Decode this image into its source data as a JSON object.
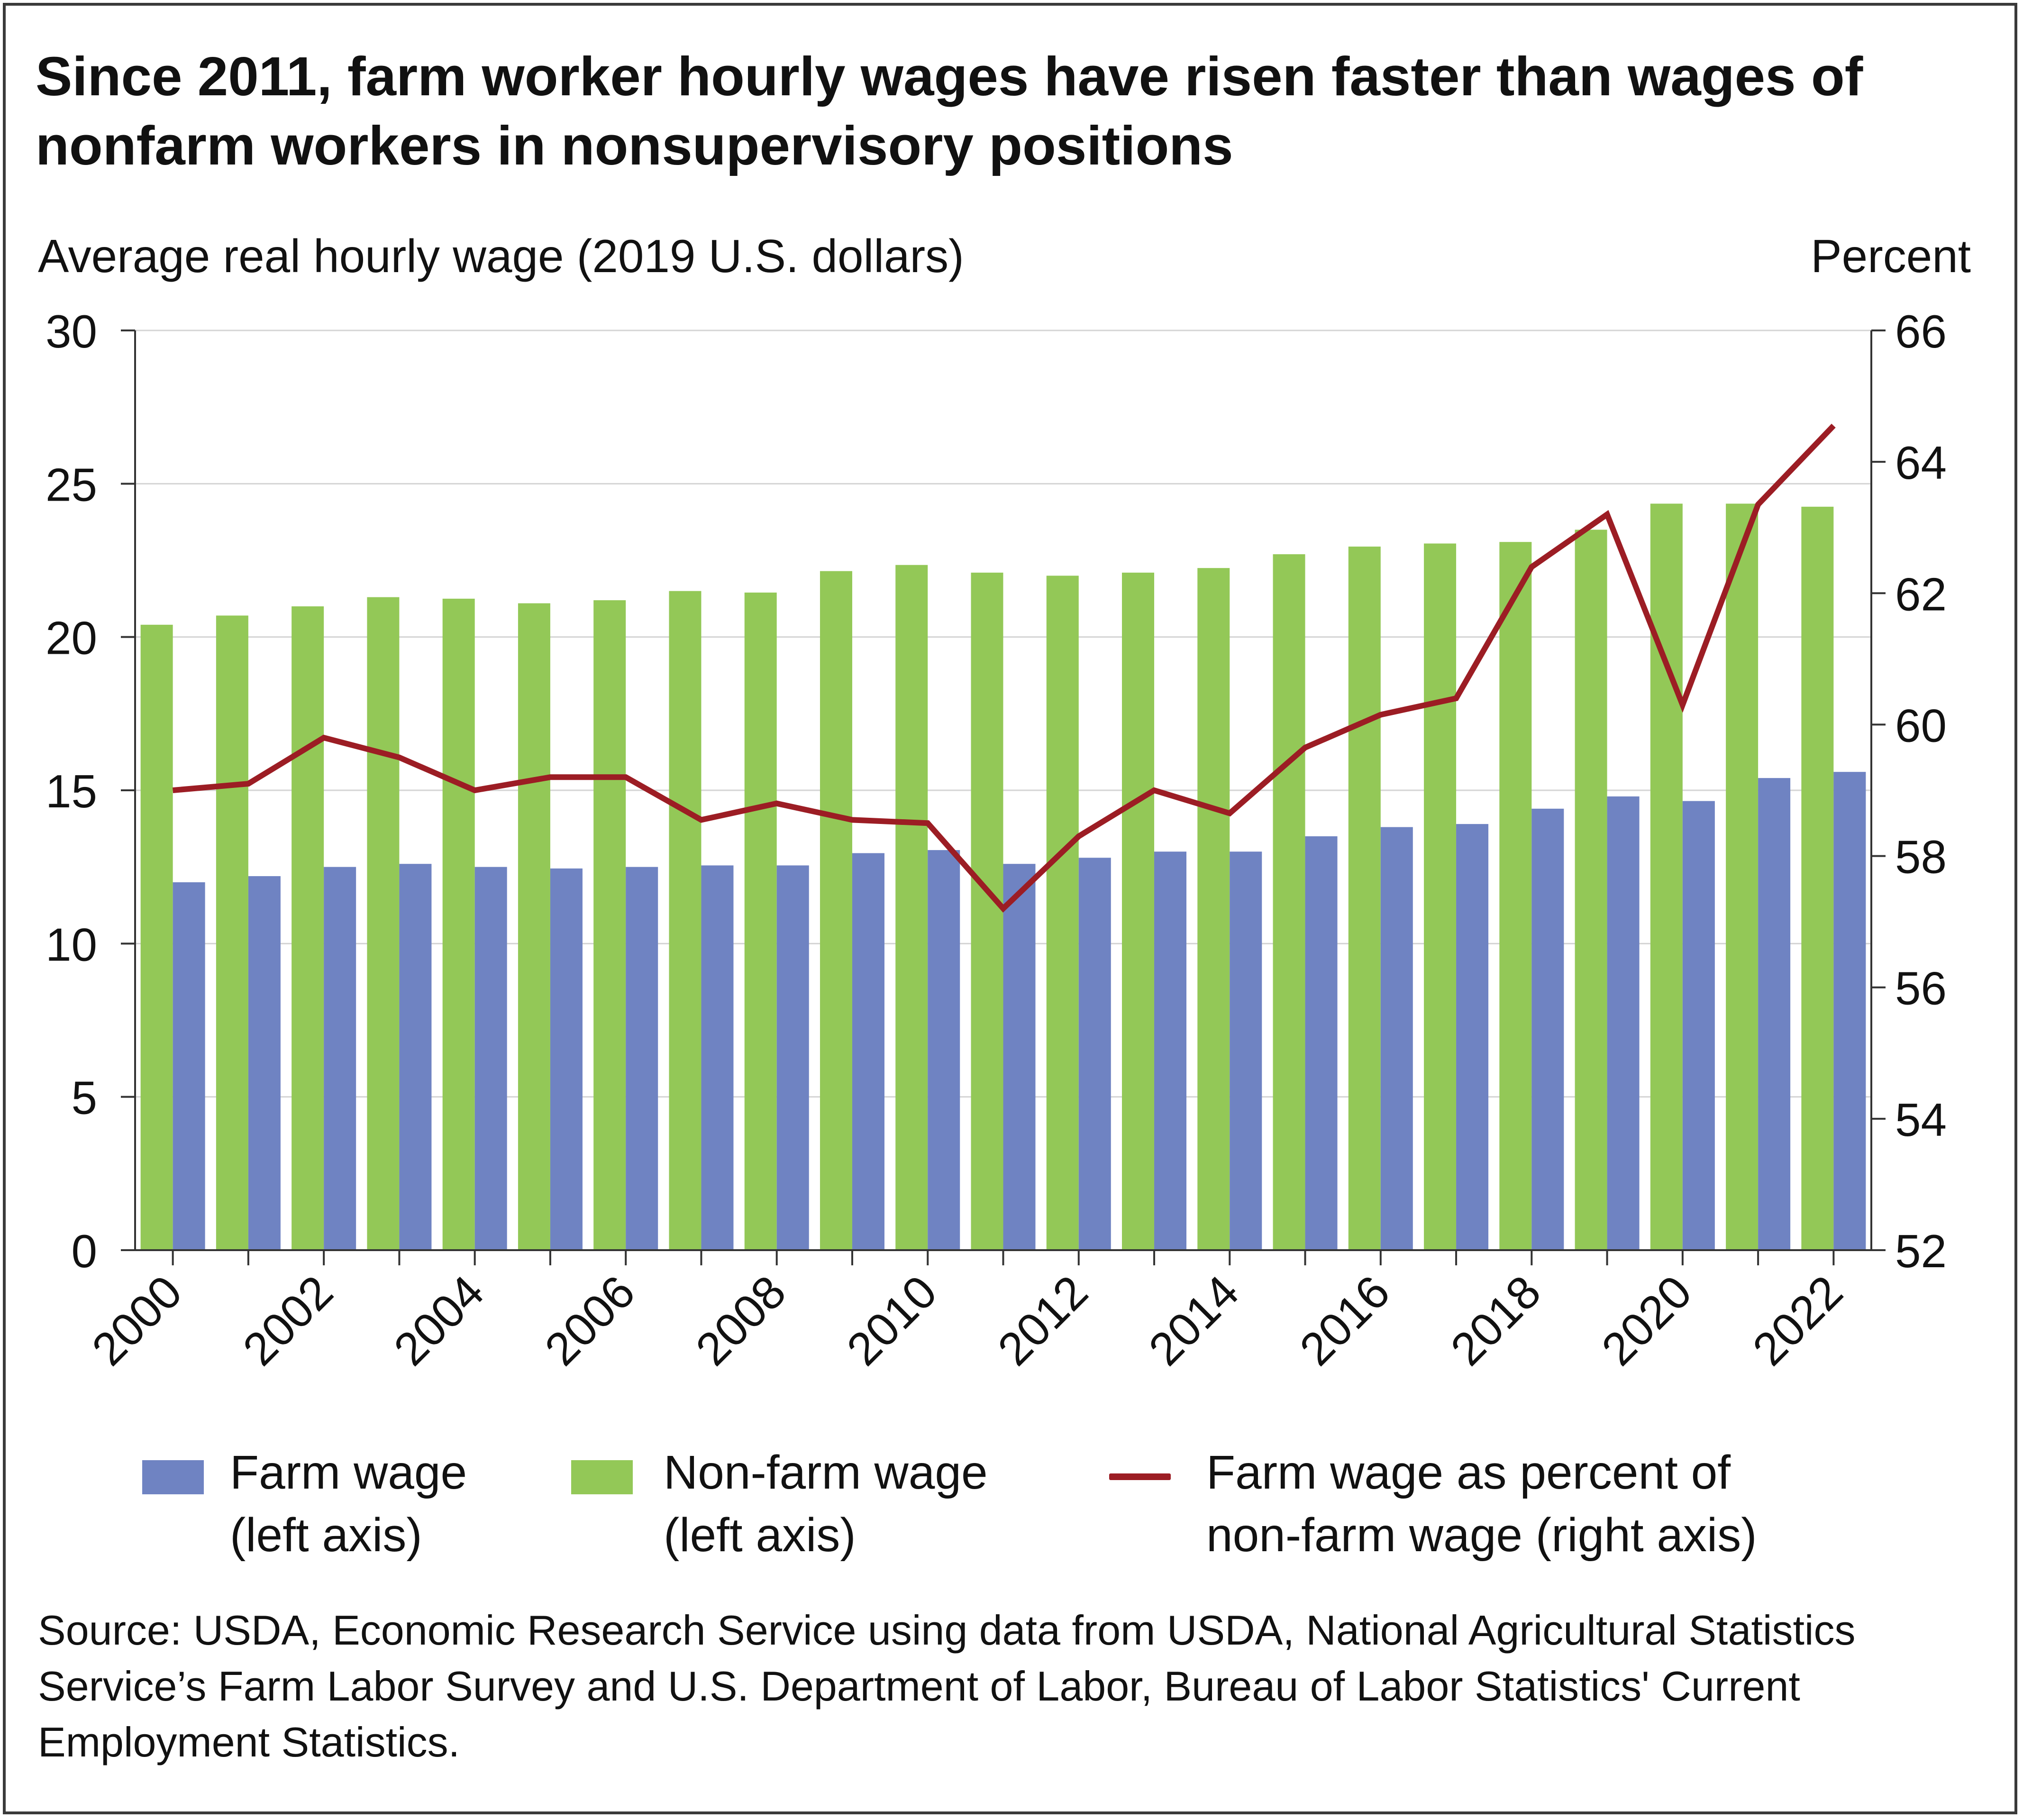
{
  "title": "Since 2011, farm worker hourly wages have risen faster than wages of nonfarm workers in nonsupervisory positions",
  "left_axis_title": "Average real hourly wage (2019 U.S. dollars)",
  "right_axis_title": "Percent",
  "legend": {
    "farm": {
      "line1": "Farm wage",
      "line2": "(left axis)"
    },
    "nonfarm": {
      "line1": "Non-farm wage",
      "line2": "(left axis)"
    },
    "ratio": {
      "line1": "Farm wage as percent of",
      "line2": "non-farm wage (right axis)"
    }
  },
  "source": "Source: USDA, Economic Research Service using data from USDA, National Agricultural Statistics Service’s Farm Labor Survey and U.S. Department of Labor, Bureau of Labor Statistics' Current Employment Statistics.",
  "colors": {
    "farm": "#6f83c2",
    "nonfarm": "#93c857",
    "ratio": "#9c1d24",
    "grid": "#d4d4d4",
    "axis": "#333333"
  },
  "chart_data": {
    "type": "bar",
    "categories": [
      "2000",
      "2001",
      "2002",
      "2003",
      "2004",
      "2005",
      "2006",
      "2007",
      "2008",
      "2009",
      "2010",
      "2011",
      "2012",
      "2013",
      "2014",
      "2015",
      "2016",
      "2017",
      "2018",
      "2019",
      "2020",
      "2021",
      "2022"
    ],
    "x_tick_labels": [
      "2000",
      "2002",
      "2004",
      "2006",
      "2008",
      "2010",
      "2012",
      "2014",
      "2016",
      "2018",
      "2020",
      "2022"
    ],
    "series": [
      {
        "name": "Farm wage (left axis)",
        "type": "bar",
        "axis": "left",
        "values": [
          12.0,
          12.2,
          12.5,
          12.6,
          12.5,
          12.45,
          12.5,
          12.55,
          12.55,
          12.95,
          13.05,
          12.6,
          12.8,
          13.0,
          13.0,
          13.5,
          13.8,
          13.9,
          14.4,
          14.8,
          14.65,
          15.4,
          15.6
        ]
      },
      {
        "name": "Non-farm wage (left axis)",
        "type": "bar",
        "axis": "left",
        "values": [
          20.4,
          20.7,
          21.0,
          21.3,
          21.25,
          21.1,
          21.2,
          21.5,
          21.45,
          22.15,
          22.35,
          22.1,
          22.0,
          22.1,
          22.25,
          22.7,
          22.95,
          23.05,
          23.1,
          23.5,
          24.35,
          24.35,
          24.25
        ]
      },
      {
        "name": "Farm wage as percent of non-farm wage (right axis)",
        "type": "line",
        "axis": "right",
        "values": [
          59.0,
          59.1,
          59.8,
          59.5,
          59.0,
          59.2,
          59.2,
          58.55,
          58.8,
          58.55,
          58.5,
          57.2,
          58.3,
          59.0,
          58.65,
          59.65,
          60.15,
          60.4,
          62.4,
          63.2,
          60.3,
          63.35,
          64.55
        ]
      }
    ],
    "left_axis": {
      "label": "Average real hourly wage (2019 U.S. dollars)",
      "ylim": [
        0,
        30
      ],
      "ticks": [
        0,
        5,
        10,
        15,
        20,
        25,
        30
      ]
    },
    "right_axis": {
      "label": "Percent",
      "ylim": [
        52,
        66
      ],
      "ticks": [
        52,
        54,
        56,
        58,
        60,
        62,
        64,
        66
      ]
    },
    "grid": true,
    "legend_position": "bottom"
  }
}
